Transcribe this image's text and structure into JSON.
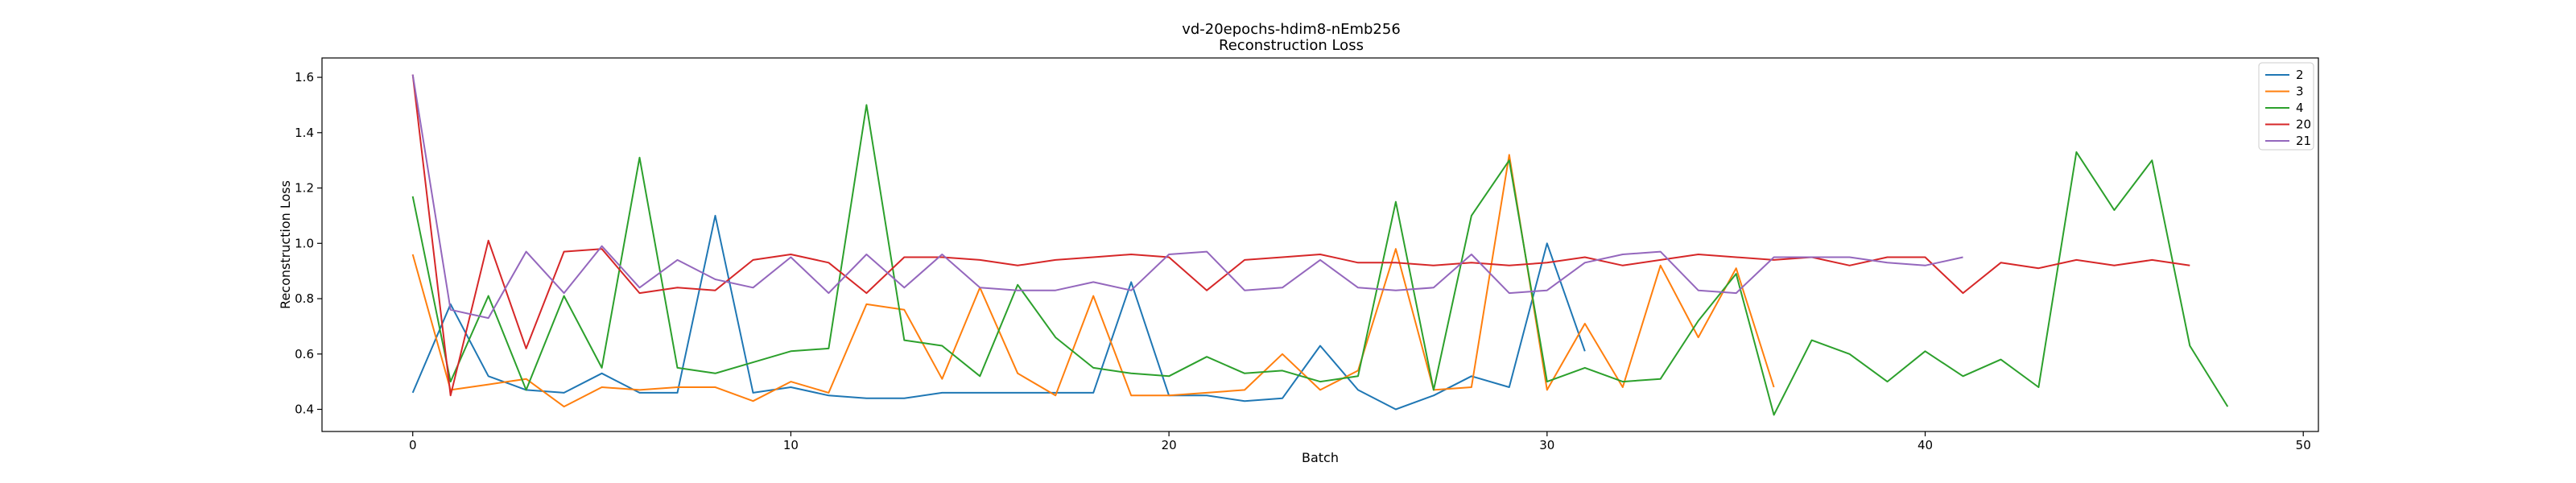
{
  "chart_data": {
    "type": "line",
    "title": "vd-20epochs-hdim8-nEmb256",
    "subtitle": "Reconstruction Loss",
    "xlabel": "Batch",
    "ylabel": "Reconstruction Loss",
    "xlim": [
      -2.4,
      50.4
    ],
    "ylim": [
      0.32,
      1.67
    ],
    "xticks": [
      0,
      10,
      20,
      30,
      40,
      50
    ],
    "yticks": [
      0.4,
      0.6,
      0.8,
      1.0,
      1.2,
      1.4,
      1.6
    ],
    "ytick_labels": [
      "0.4",
      "0.6",
      "0.8",
      "1.0",
      "1.2",
      "1.4",
      "1.6"
    ],
    "grid": false,
    "legend_position": "top-right",
    "series": [
      {
        "name": "2",
        "color": "#1f77b4",
        "values": [
          0.46,
          0.78,
          0.52,
          0.47,
          0.46,
          0.53,
          0.46,
          0.46,
          1.1,
          0.46,
          0.48,
          0.45,
          0.44,
          0.44,
          0.46,
          0.46,
          0.46,
          0.46,
          0.46,
          0.86,
          0.45,
          0.45,
          0.43,
          0.44,
          0.63,
          0.47,
          0.4,
          0.45,
          0.52,
          0.48,
          1.0,
          0.61
        ]
      },
      {
        "name": "3",
        "color": "#ff7f0e",
        "values": [
          0.96,
          0.47,
          0.49,
          0.51,
          0.41,
          0.48,
          0.47,
          0.48,
          0.48,
          0.43,
          0.5,
          0.46,
          0.78,
          0.76,
          0.51,
          0.84,
          0.53,
          0.45,
          0.81,
          0.45,
          0.45,
          0.46,
          0.47,
          0.6,
          0.47,
          0.54,
          0.98,
          0.47,
          0.48,
          1.32,
          0.47,
          0.71,
          0.48,
          0.92,
          0.66,
          0.91,
          0.48
        ]
      },
      {
        "name": "4",
        "color": "#2ca02c",
        "values": [
          1.17,
          0.5,
          0.81,
          0.47,
          0.81,
          0.55,
          1.31,
          0.55,
          0.53,
          0.57,
          0.61,
          0.62,
          1.5,
          0.65,
          0.63,
          0.52,
          0.85,
          0.66,
          0.55,
          0.53,
          0.52,
          0.59,
          0.53,
          0.54,
          0.5,
          0.52,
          1.15,
          0.47,
          1.1,
          1.3,
          0.5,
          0.55,
          0.5,
          0.51,
          0.72,
          0.89,
          0.38,
          0.65,
          0.6,
          0.5,
          0.61,
          0.52,
          0.58,
          0.48,
          1.33,
          1.12,
          1.3,
          0.63,
          0.41
        ]
      },
      {
        "name": "20",
        "color": "#d62728",
        "values": [
          1.61,
          0.45,
          1.01,
          0.62,
          0.97,
          0.98,
          0.82,
          0.84,
          0.83,
          0.94,
          0.96,
          0.93,
          0.82,
          0.95,
          0.95,
          0.94,
          0.92,
          0.94,
          0.95,
          0.96,
          0.95,
          0.83,
          0.94,
          0.95,
          0.96,
          0.93,
          0.93,
          0.92,
          0.93,
          0.92,
          0.93,
          0.95,
          0.92,
          0.94,
          0.96,
          0.95,
          0.94,
          0.95,
          0.92,
          0.95,
          0.95,
          0.82,
          0.93,
          0.91,
          0.94,
          0.92,
          0.94,
          0.92
        ]
      },
      {
        "name": "21",
        "color": "#9467bd",
        "values": [
          1.61,
          0.76,
          0.73,
          0.97,
          0.82,
          0.99,
          0.84,
          0.94,
          0.87,
          0.84,
          0.95,
          0.82,
          0.96,
          0.84,
          0.96,
          0.84,
          0.83,
          0.83,
          0.86,
          0.83,
          0.96,
          0.97,
          0.83,
          0.84,
          0.94,
          0.84,
          0.83,
          0.84,
          0.96,
          0.82,
          0.83,
          0.93,
          0.96,
          0.97,
          0.83,
          0.82,
          0.95,
          0.95,
          0.95,
          0.93,
          0.92,
          0.95
        ]
      }
    ]
  }
}
